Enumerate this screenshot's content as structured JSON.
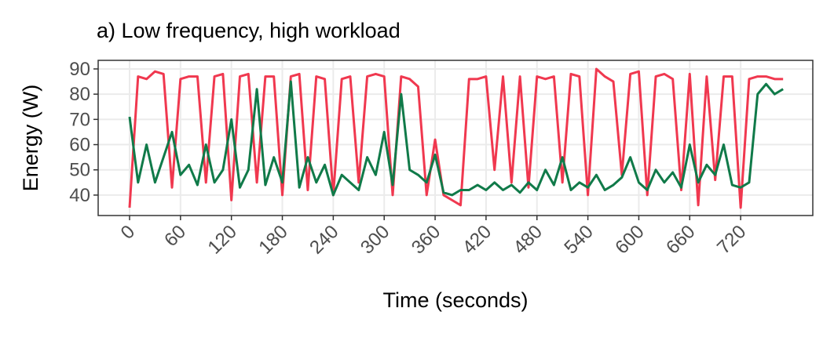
{
  "chart_data": {
    "type": "line",
    "title": "a) Low frequency, high workload",
    "x_label": "Time (seconds)",
    "y_label": "Energy (W)",
    "x": [
      0,
      10,
      20,
      30,
      40,
      50,
      60,
      70,
      80,
      90,
      100,
      110,
      120,
      130,
      140,
      150,
      160,
      170,
      180,
      190,
      200,
      210,
      220,
      230,
      240,
      250,
      260,
      270,
      280,
      290,
      300,
      310,
      320,
      330,
      340,
      350,
      360,
      370,
      380,
      390,
      400,
      410,
      420,
      430,
      440,
      450,
      460,
      470,
      480,
      490,
      500,
      510,
      520,
      530,
      540,
      550,
      560,
      570,
      580,
      590,
      600,
      610,
      620,
      630,
      640,
      650,
      660,
      670,
      680,
      690,
      700,
      710,
      720,
      730,
      740,
      750,
      760,
      770
    ],
    "series": [
      {
        "color": "#f0384f",
        "values": [
          35,
          87,
          86,
          89,
          88,
          43,
          86,
          87,
          87,
          45,
          87,
          88,
          38,
          87,
          88,
          45,
          87,
          87,
          40,
          87,
          88,
          42,
          87,
          86,
          40,
          86,
          87,
          45,
          87,
          88,
          87,
          40,
          87,
          86,
          83,
          40,
          62,
          40,
          38,
          36,
          86,
          86,
          87,
          50,
          87,
          45,
          87,
          43,
          87,
          86,
          87,
          45,
          88,
          87,
          40,
          90,
          87,
          85,
          48,
          88,
          89,
          40,
          87,
          88,
          86,
          42,
          88,
          36,
          87,
          46,
          87,
          87,
          35,
          86,
          87,
          87,
          86,
          86
        ]
      },
      {
        "color": "#107a49",
        "values": [
          71,
          45,
          60,
          45,
          55,
          65,
          48,
          52,
          44,
          60,
          45,
          50,
          70,
          43,
          50,
          82,
          44,
          55,
          45,
          85,
          43,
          55,
          45,
          52,
          40,
          48,
          45,
          42,
          55,
          48,
          65,
          44,
          80,
          50,
          48,
          45,
          56,
          41,
          40,
          42,
          42,
          44,
          42,
          45,
          42,
          44,
          41,
          45,
          42,
          50,
          44,
          55,
          42,
          45,
          43,
          48,
          42,
          44,
          47,
          55,
          45,
          42,
          50,
          45,
          49,
          43,
          60,
          45,
          52,
          48,
          60,
          44,
          43,
          45,
          80,
          84,
          80,
          82
        ]
      }
    ],
    "xlim": [
      -37,
      805
    ],
    "ylim": [
      31.9,
      93.4
    ],
    "xticks": [
      0,
      60,
      120,
      180,
      240,
      300,
      360,
      420,
      480,
      540,
      600,
      660,
      720
    ],
    "yticks": [
      40,
      50,
      60,
      70,
      80,
      90
    ],
    "grid": true
  }
}
